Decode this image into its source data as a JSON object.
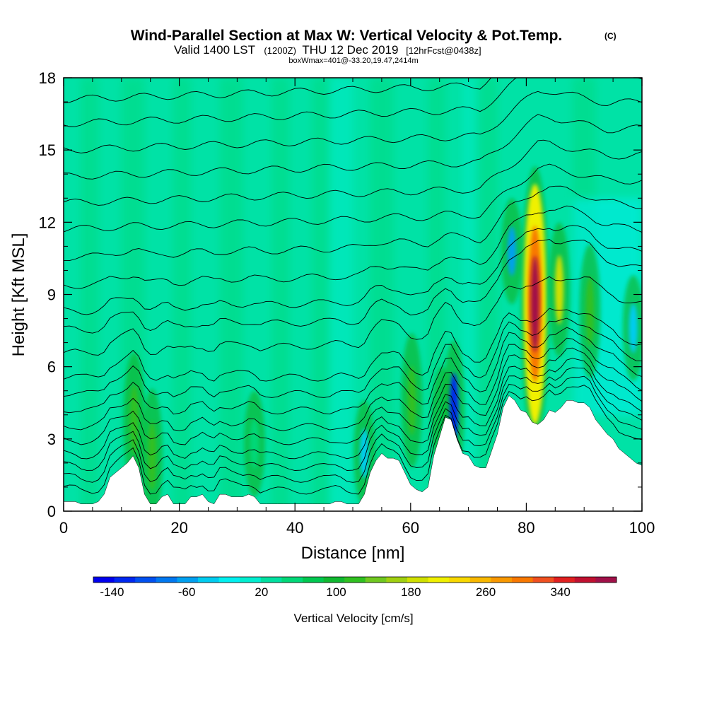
{
  "chart_data": {
    "type": "heatmap",
    "title": "Wind-Parallel Section at Max W: Vertical Velocity & Pot.Temp.",
    "title_mark": "(C)",
    "subtitle_valid": "Valid 1400 LST",
    "subtitle_utc": "(1200Z)",
    "subtitle_date": "THU 12 Dec 2019",
    "subtitle_fcst": "[12hrFcst@0438z]",
    "subtitle_box": "boxWmax=401@-33.20,19.47,2414m",
    "xlabel": "Distance [nm]",
    "ylabel": "Height [Kft MSL]",
    "xlim": [
      0,
      100
    ],
    "ylim": [
      0,
      18
    ],
    "xticks": [
      "0",
      "20",
      "40",
      "60",
      "80",
      "100"
    ],
    "yticks": [
      "0",
      "3",
      "6",
      "9",
      "12",
      "15",
      "18"
    ],
    "colorbar": {
      "label": "Vertical Velocity [cm/s]",
      "range": [
        -160,
        400
      ],
      "tick_labels": [
        "-140",
        "-60",
        "20",
        "100",
        "180",
        "260",
        "340"
      ],
      "colors": [
        "#0000ee",
        "#0028f0",
        "#0050f0",
        "#0078f0",
        "#00a0f0",
        "#00ccf0",
        "#00f0f0",
        "#00eed0",
        "#00e0a0",
        "#00d878",
        "#00c850",
        "#10b830",
        "#30c020",
        "#70c820",
        "#a0d010",
        "#d0e000",
        "#f0f000",
        "#f8d800",
        "#f8b800",
        "#f89800",
        "#f87800",
        "#f05020",
        "#e02020",
        "#c01030",
        "#a01048"
      ]
    },
    "terrain_profile": {
      "x_nm": [
        0,
        2,
        3,
        4,
        5,
        6,
        7,
        8,
        9,
        10,
        11,
        12,
        13,
        14,
        15,
        16,
        17,
        18,
        19,
        20,
        21,
        22,
        23,
        24,
        25,
        26,
        27,
        28,
        29,
        30,
        31,
        32,
        33,
        34,
        35,
        36,
        37,
        38,
        39,
        40,
        41,
        42,
        43,
        44,
        45,
        46,
        47,
        48,
        49,
        50,
        51,
        52,
        53,
        54,
        55,
        56,
        57,
        58,
        59,
        60,
        61,
        62,
        63,
        64,
        65,
        66,
        67,
        68,
        69,
        70,
        71,
        72,
        73,
        74,
        75,
        76,
        77,
        78,
        79,
        80,
        81,
        82,
        83,
        84,
        85,
        86,
        87,
        88,
        89,
        90,
        91,
        92,
        93,
        94,
        95,
        96,
        97,
        98,
        99,
        100
      ],
      "height_kft": [
        0.4,
        0.4,
        0.3,
        0.3,
        0.3,
        0.4,
        0.7,
        1.4,
        1.6,
        1.8,
        2.0,
        2.3,
        1.8,
        0.7,
        0.3,
        0.3,
        0.6,
        0.7,
        0.3,
        0.3,
        0.3,
        0.6,
        0.6,
        0.7,
        0.4,
        0.3,
        0.7,
        0.7,
        0.6,
        0.6,
        0.6,
        0.7,
        0.6,
        0.3,
        0.3,
        0.3,
        0.3,
        0.3,
        0.3,
        0.3,
        0.3,
        0.3,
        0.3,
        0.3,
        0.3,
        0.3,
        0.4,
        0.4,
        0.3,
        0.3,
        0.3,
        0.7,
        1.6,
        2.1,
        2.4,
        2.2,
        2.2,
        2.1,
        1.6,
        1.1,
        0.9,
        0.8,
        1.0,
        2.3,
        3.1,
        3.9,
        3.8,
        3.0,
        2.4,
        2.3,
        1.9,
        1.8,
        1.8,
        2.5,
        3.2,
        4.3,
        4.8,
        4.6,
        4.2,
        4.1,
        3.7,
        3.6,
        3.8,
        4.2,
        4.1,
        4.3,
        4.6,
        4.6,
        4.5,
        4.5,
        4.3,
        3.8,
        3.5,
        3.2,
        3.0,
        2.6,
        2.4,
        2.2,
        2.0,
        1.9
      ]
    },
    "velocity_features": [
      {
        "x_nm": 12.2,
        "height_kft": 3.8,
        "w_cms": 130
      },
      {
        "x_nm": 15.3,
        "height_kft": 2.3,
        "w_cms": 110
      },
      {
        "x_nm": 33.0,
        "height_kft": 2.8,
        "w_cms": 60
      },
      {
        "x_nm": 52.0,
        "height_kft": 2.4,
        "w_cms": -40
      },
      {
        "x_nm": 60.2,
        "height_kft": 4.6,
        "w_cms": 110
      },
      {
        "x_nm": 65.5,
        "height_kft": 3.8,
        "w_cms": 70
      },
      {
        "x_nm": 67.5,
        "height_kft": 4.3,
        "w_cms": -130
      },
      {
        "x_nm": 77.5,
        "height_kft": 10.8,
        "w_cms": -70
      },
      {
        "x_nm": 81.5,
        "height_kft": 8.6,
        "w_cms": 380
      },
      {
        "x_nm": 85.7,
        "height_kft": 9.2,
        "w_cms": 190
      },
      {
        "x_nm": 91.0,
        "height_kft": 8.3,
        "w_cms": 110
      },
      {
        "x_nm": 98.5,
        "height_kft": 7.6,
        "w_cms": -30
      }
    ],
    "theta_contours_start_height_kft": [
      0.6,
      1.1,
      1.6,
      2.1,
      2.7,
      3.3,
      4.0,
      4.7,
      5.4,
      6.4,
      7.4,
      8.2,
      9.3,
      10.5,
      11.7,
      12.8,
      13.9,
      15.0,
      16.1,
      17.1
    ]
  }
}
